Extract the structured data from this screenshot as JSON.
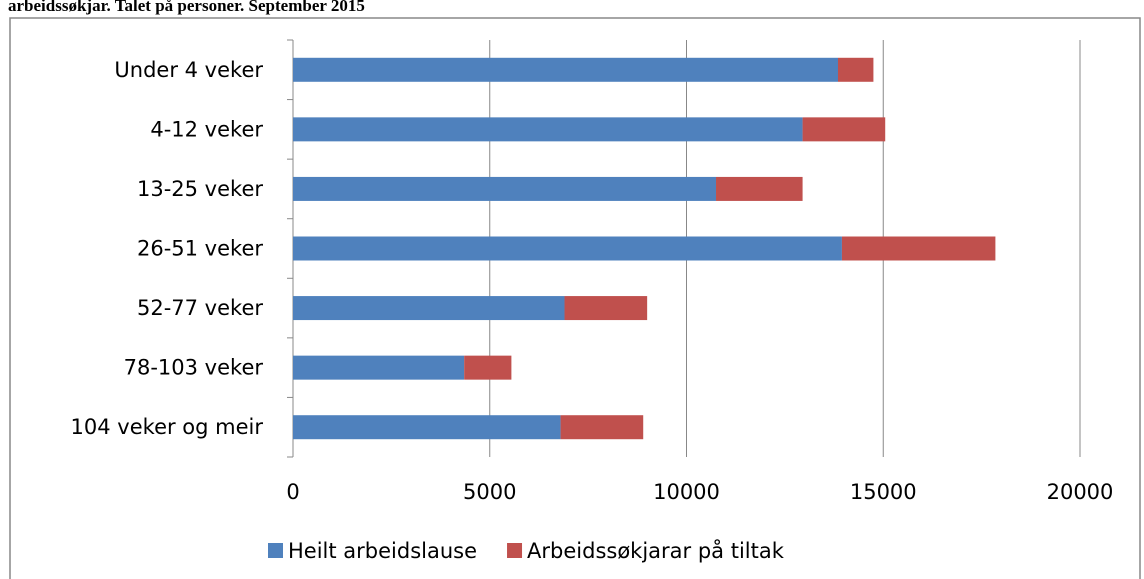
{
  "chart_data": {
    "type": "stacked-bar-horizontal",
    "title": "arbeidssøkjar. Talet på personer. September 2015",
    "categories": [
      "Under 4 veker",
      "4-12 veker",
      "13-25 veker",
      "26-51 veker",
      "52-77 veker",
      "78-103 veker",
      "104 veker og meir"
    ],
    "series": [
      {
        "name": "Heilt arbeidslause",
        "color": "#4f81bd",
        "values": [
          13850,
          12950,
          10750,
          13950,
          6900,
          4350,
          6800
        ]
      },
      {
        "name": "Arbeidssøkjarar på tiltak",
        "color": "#c0504d",
        "values": [
          900,
          2100,
          2200,
          3900,
          2100,
          1200,
          2100
        ]
      }
    ],
    "xlim": [
      0,
      20000
    ],
    "xticks": [
      0,
      5000,
      10000,
      15000,
      20000
    ],
    "grid": true,
    "legend": "bottom"
  }
}
